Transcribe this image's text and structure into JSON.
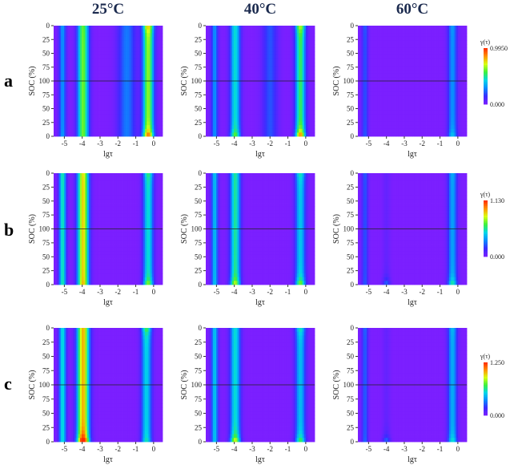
{
  "column_titles": [
    "25°C",
    "40°C",
    "60°C"
  ],
  "row_labels": [
    "a",
    "b",
    "c"
  ],
  "colormap": [
    "#7b1fff",
    "#3a2cff",
    "#0a8cff",
    "#00d8e8",
    "#3cf03c",
    "#d8ff10",
    "#ff9000",
    "#ff2a00"
  ],
  "chart_data": [
    {
      "type": "heatmap",
      "row": "a",
      "colorbar": {
        "label": "γ(τ)",
        "min_label": "0.000",
        "max_label": "0.9950",
        "min": 0,
        "max": 0.995
      },
      "panels": [
        {
          "title": "25°C",
          "peaks": [
            {
              "lgtau": -5.1,
              "sigma": 0.14,
              "amp": [
                0.32,
                0.3,
                0.32
              ]
            },
            {
              "lgtau": -3.95,
              "sigma": 0.22,
              "amp": [
                0.6,
                0.62,
                0.62
              ]
            },
            {
              "lgtau": -1.5,
              "sigma": 0.35,
              "amp": [
                0.25,
                0.26,
                0.26
              ]
            },
            {
              "lgtau": -0.3,
              "sigma": 0.22,
              "amp": [
                0.82,
                0.65,
                0.98
              ]
            }
          ]
        },
        {
          "title": "40°C",
          "peaks": [
            {
              "lgtau": -5.1,
              "sigma": 0.13,
              "amp": [
                0.3,
                0.3,
                0.3
              ]
            },
            {
              "lgtau": -3.95,
              "sigma": 0.2,
              "amp": [
                0.45,
                0.45,
                0.65
              ]
            },
            {
              "lgtau": -2.0,
              "sigma": 0.3,
              "amp": [
                0.2,
                0.2,
                0.2
              ]
            },
            {
              "lgtau": -0.3,
              "sigma": 0.2,
              "amp": [
                0.72,
                0.55,
                0.97
              ]
            }
          ]
        },
        {
          "title": "60°C",
          "peaks": [
            {
              "lgtau": -5.2,
              "sigma": 0.12,
              "amp": [
                0.22,
                0.2,
                0.22
              ]
            },
            {
              "lgtau": -0.3,
              "sigma": 0.18,
              "amp": [
                0.32,
                0.3,
                0.42
              ]
            }
          ]
        }
      ]
    },
    {
      "type": "heatmap",
      "row": "b",
      "colorbar": {
        "label": "γ(τ)",
        "min_label": "0.000",
        "max_label": "1.130",
        "min": 0,
        "max": 1.13
      },
      "panels": [
        {
          "title": "25°C",
          "peaks": [
            {
              "lgtau": -5.1,
              "sigma": 0.14,
              "amp": [
                0.5,
                0.48,
                0.5
              ]
            },
            {
              "lgtau": -3.95,
              "sigma": 0.22,
              "amp": [
                0.75,
                0.78,
                0.82
              ]
            },
            {
              "lgtau": -0.3,
              "sigma": 0.2,
              "amp": [
                0.55,
                0.45,
                0.7
              ]
            }
          ]
        },
        {
          "title": "40°C",
          "peaks": [
            {
              "lgtau": -5.1,
              "sigma": 0.13,
              "amp": [
                0.4,
                0.38,
                0.4
              ]
            },
            {
              "lgtau": -3.95,
              "sigma": 0.2,
              "amp": [
                0.5,
                0.5,
                0.75
              ]
            },
            {
              "lgtau": -0.3,
              "sigma": 0.2,
              "amp": [
                0.5,
                0.4,
                0.7
              ]
            }
          ]
        },
        {
          "title": "60°C",
          "peaks": [
            {
              "lgtau": -5.2,
              "sigma": 0.12,
              "amp": [
                0.22,
                0.2,
                0.22
              ]
            },
            {
              "lgtau": -4.0,
              "sigma": 0.15,
              "amp": [
                0.05,
                0.05,
                0.28
              ]
            },
            {
              "lgtau": -0.3,
              "sigma": 0.18,
              "amp": [
                0.35,
                0.33,
                0.55
              ]
            }
          ]
        }
      ]
    },
    {
      "type": "heatmap",
      "row": "c",
      "colorbar": {
        "label": "γ(τ)",
        "min_label": "0.000",
        "max_label": "1.250",
        "min": 0,
        "max": 1.25
      },
      "panels": [
        {
          "title": "25°C",
          "peaks": [
            {
              "lgtau": -5.1,
              "sigma": 0.14,
              "amp": [
                0.45,
                0.45,
                0.45
              ]
            },
            {
              "lgtau": -3.95,
              "sigma": 0.24,
              "amp": [
                0.82,
                0.82,
                1.2
              ]
            },
            {
              "lgtau": -0.4,
              "sigma": 0.2,
              "amp": [
                0.6,
                0.42,
                0.5
              ]
            }
          ]
        },
        {
          "title": "40°C",
          "peaks": [
            {
              "lgtau": -5.1,
              "sigma": 0.13,
              "amp": [
                0.4,
                0.4,
                0.4
              ]
            },
            {
              "lgtau": -3.95,
              "sigma": 0.2,
              "amp": [
                0.45,
                0.45,
                0.8
              ]
            },
            {
              "lgtau": -0.3,
              "sigma": 0.2,
              "amp": [
                0.5,
                0.38,
                0.62
              ]
            }
          ]
        },
        {
          "title": "60°C",
          "peaks": [
            {
              "lgtau": -5.2,
              "sigma": 0.12,
              "amp": [
                0.24,
                0.22,
                0.24
              ]
            },
            {
              "lgtau": -4.0,
              "sigma": 0.15,
              "amp": [
                0.05,
                0.05,
                0.28
              ]
            },
            {
              "lgtau": -0.3,
              "sigma": 0.18,
              "amp": [
                0.38,
                0.35,
                0.5
              ]
            }
          ]
        }
      ]
    }
  ],
  "axes": {
    "xlabel": "lgτ",
    "ylabel": "SOC (%)",
    "xlim": [
      -5.6,
      0.5
    ],
    "xticks": [
      "-5",
      "-4",
      "-3",
      "-2",
      "-1",
      "0"
    ],
    "yticks": [
      "0",
      "25",
      "50",
      "75",
      "100",
      "75",
      "50",
      "25",
      "0"
    ]
  }
}
